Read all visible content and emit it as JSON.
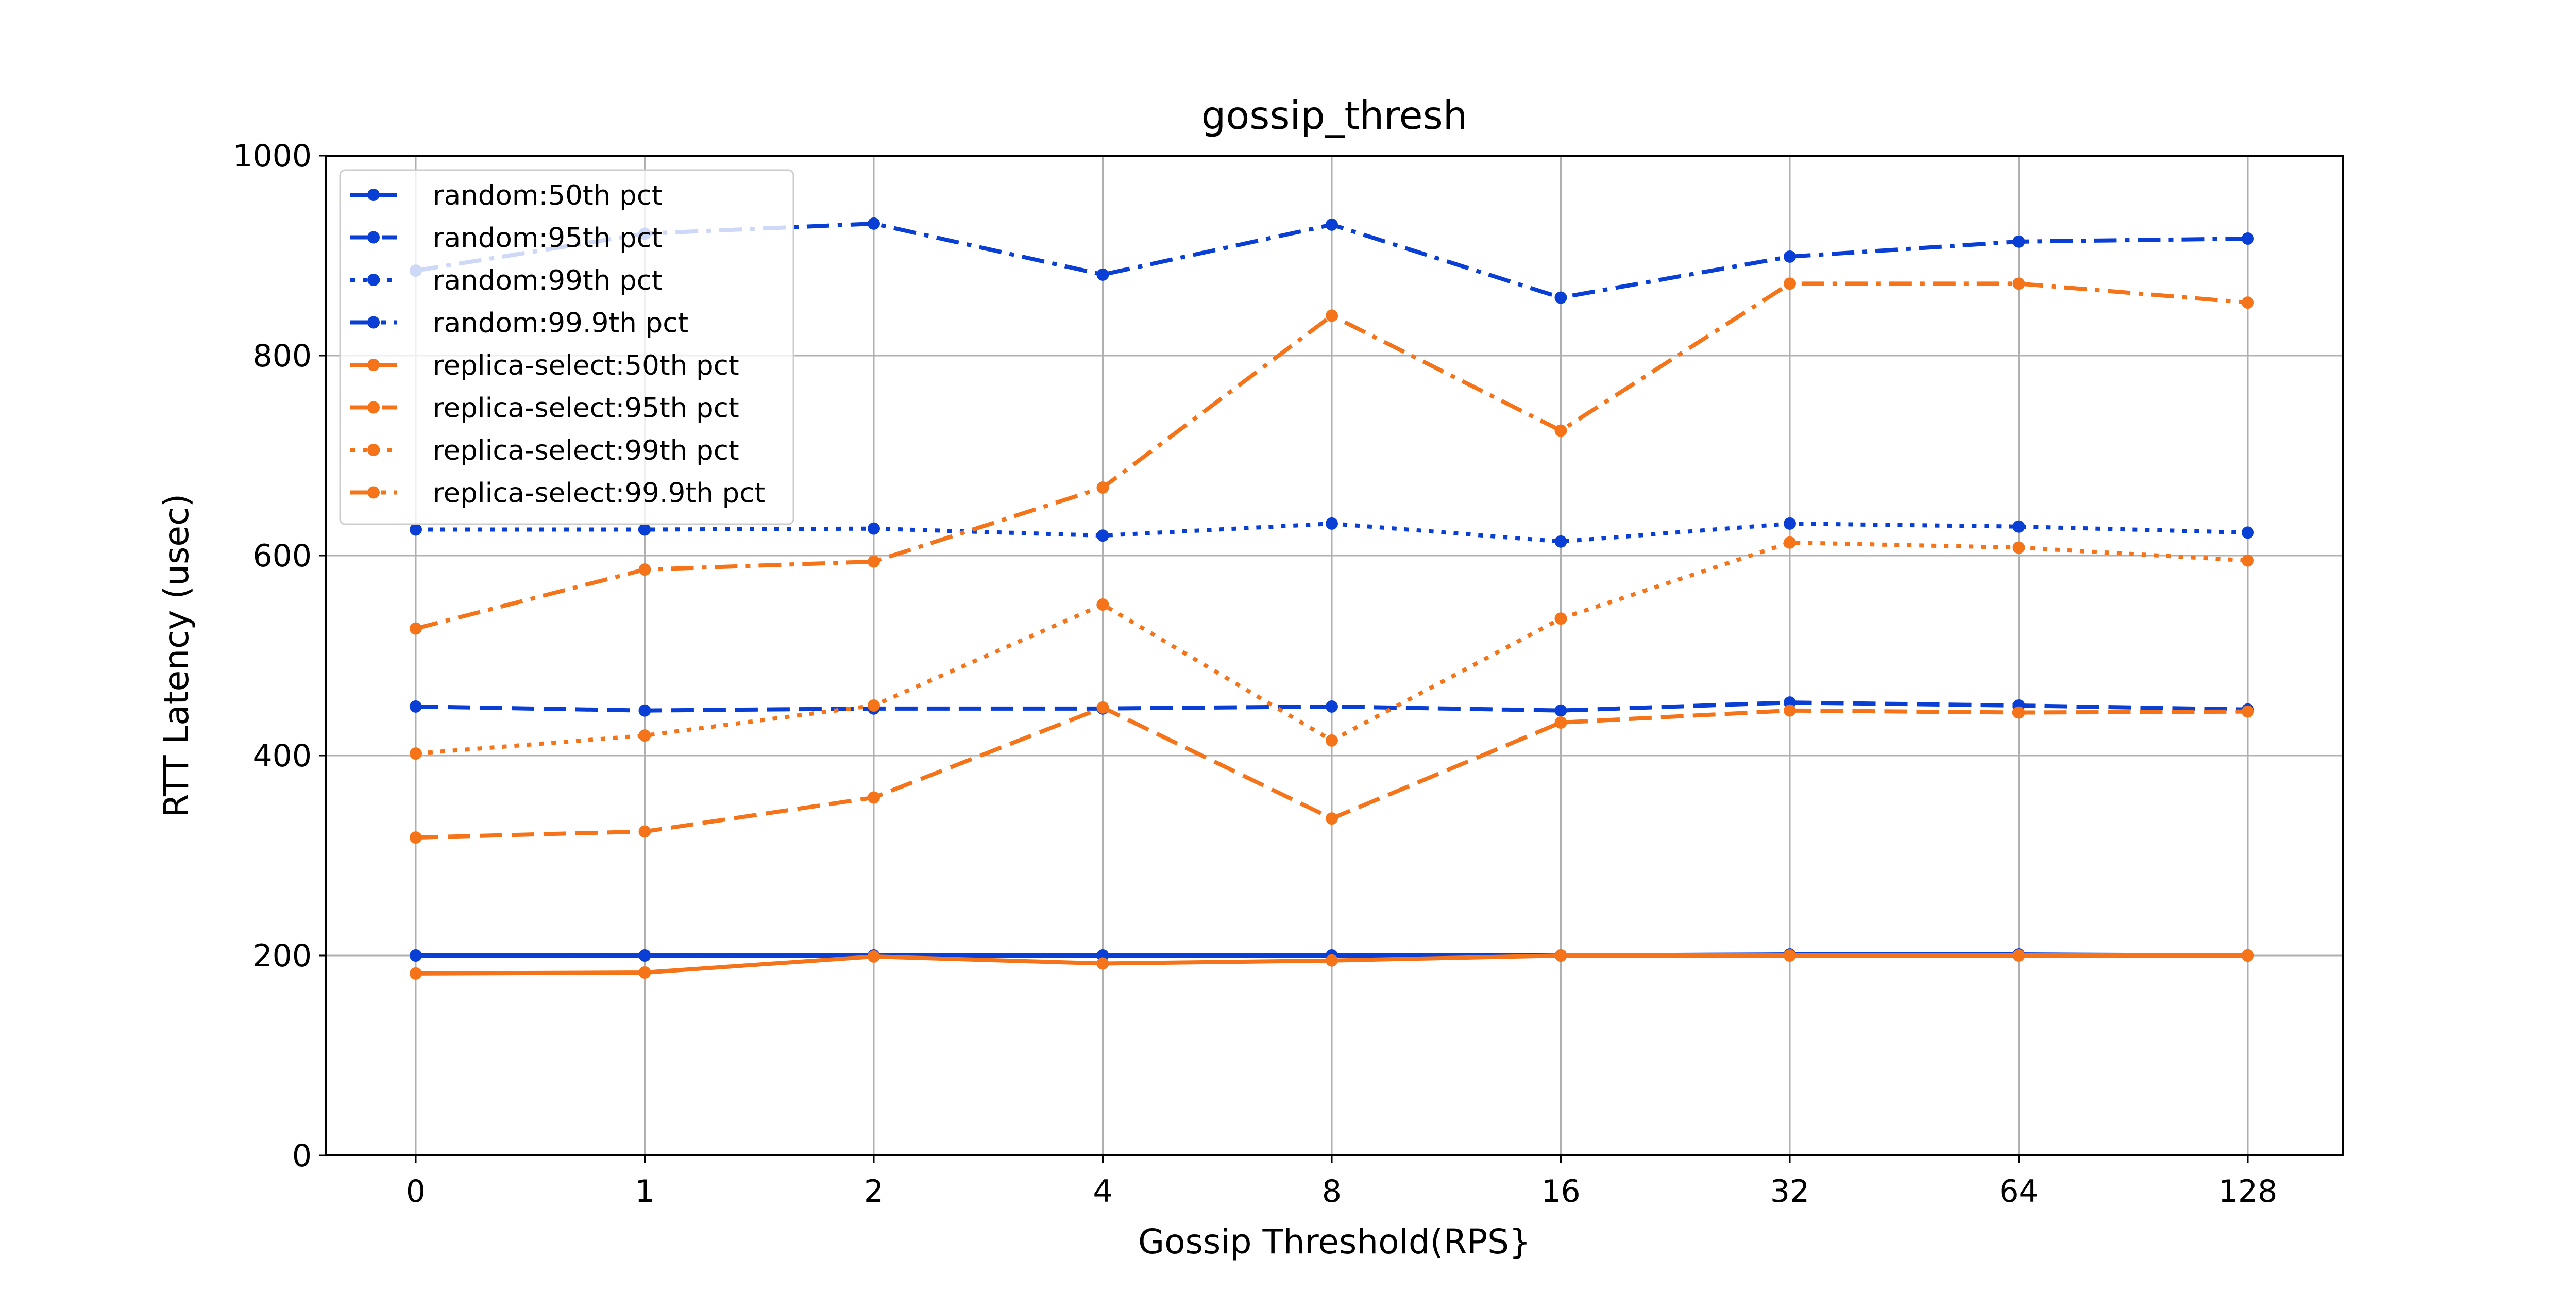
{
  "chart_data": {
    "type": "line",
    "title": "gossip_thresh",
    "xlabel": "Gossip Threshold(RPS}",
    "ylabel": "RTT Latency (usec)",
    "categories": [
      "0",
      "1",
      "2",
      "4",
      "8",
      "16",
      "32",
      "64",
      "128"
    ],
    "ylim": [
      0,
      1000
    ],
    "yticks": [
      0,
      200,
      400,
      600,
      800,
      1000
    ],
    "grid": true,
    "legend_position": "upper-left",
    "series": [
      {
        "name": "random:50th pct",
        "color": "#0a3fd6",
        "style": "solid",
        "values": [
          200,
          200,
          200,
          200,
          200,
          200,
          201,
          201,
          200
        ]
      },
      {
        "name": "random:95th pct",
        "color": "#0a3fd6",
        "style": "dashed",
        "values": [
          449,
          445,
          447,
          447,
          449,
          445,
          453,
          450,
          446
        ]
      },
      {
        "name": "random:99th pct",
        "color": "#0a3fd6",
        "style": "dotted",
        "values": [
          626,
          626,
          627,
          620,
          632,
          614,
          632,
          629,
          623
        ]
      },
      {
        "name": "random:99.9th pct",
        "color": "#0a3fd6",
        "style": "dashdot",
        "values": [
          885,
          922,
          932,
          881,
          931,
          858,
          899,
          914,
          917
        ]
      },
      {
        "name": "replica-select:50th pct",
        "color": "#f5741a",
        "style": "solid",
        "values": [
          182,
          183,
          199,
          192,
          195,
          200,
          200,
          200,
          200
        ]
      },
      {
        "name": "replica-select:95th pct",
        "color": "#f5741a",
        "style": "dashed",
        "values": [
          318,
          324,
          358,
          448,
          337,
          433,
          445,
          443,
          444
        ]
      },
      {
        "name": "replica-select:99th pct",
        "color": "#f5741a",
        "style": "dotted",
        "values": [
          402,
          420,
          450,
          551,
          415,
          537,
          613,
          608,
          595
        ]
      },
      {
        "name": "replica-select:99.9th pct",
        "color": "#f5741a",
        "style": "dashdot",
        "values": [
          527,
          586,
          594,
          668,
          840,
          725,
          872,
          872,
          853
        ]
      }
    ]
  }
}
